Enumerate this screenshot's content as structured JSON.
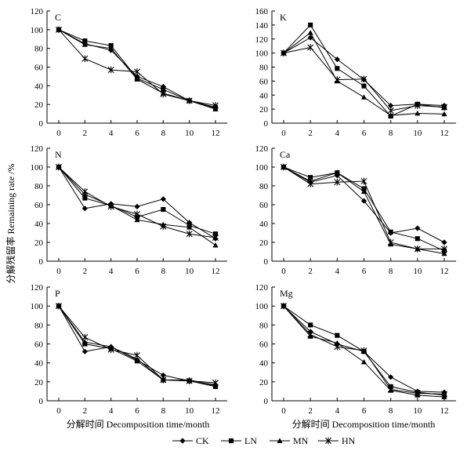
{
  "figure": {
    "ylabel": "分解残留率 Remaining rate /%",
    "xlabel_left": "分解时间 Decomposition time/month",
    "xlabel_right": "分解时间 Decomposition time/month"
  },
  "legend": {
    "items": [
      {
        "name": "CK",
        "marker": "diamond"
      },
      {
        "name": "LN",
        "marker": "square"
      },
      {
        "name": "MN",
        "marker": "triangle"
      },
      {
        "name": "HN",
        "marker": "x"
      }
    ]
  },
  "colors": {
    "ink": "#000000",
    "background": "#ffffff"
  },
  "chart_data": [
    {
      "type": "line",
      "panel_label": "C",
      "x": [
        0,
        2,
        4,
        6,
        8,
        10,
        12
      ],
      "ylim": [
        0,
        120
      ],
      "yticks": [
        0,
        20,
        40,
        60,
        80,
        100,
        120
      ],
      "series": [
        {
          "name": "CK",
          "values": [
            100,
            85,
            78,
            50,
            39,
            24,
            16
          ]
        },
        {
          "name": "LN",
          "values": [
            100,
            88,
            83,
            48,
            36,
            24,
            17
          ]
        },
        {
          "name": "MN",
          "values": [
            100,
            84,
            80,
            47,
            32,
            24,
            15
          ]
        },
        {
          "name": "HN",
          "values": [
            100,
            69,
            57,
            55,
            31,
            24,
            19
          ]
        }
      ]
    },
    {
      "type": "line",
      "panel_label": "K",
      "x": [
        0,
        2,
        4,
        6,
        8,
        10,
        12
      ],
      "ylim": [
        0,
        160
      ],
      "yticks": [
        0,
        20,
        40,
        60,
        80,
        100,
        120,
        140,
        160
      ],
      "series": [
        {
          "name": "CK",
          "values": [
            100,
            122,
            91,
            62,
            25,
            27,
            25
          ]
        },
        {
          "name": "LN",
          "values": [
            100,
            140,
            78,
            53,
            10,
            27,
            22
          ]
        },
        {
          "name": "MN",
          "values": [
            100,
            129,
            60,
            37,
            11,
            14,
            13
          ]
        },
        {
          "name": "HN",
          "values": [
            100,
            108,
            62,
            63,
            18,
            25,
            23
          ]
        }
      ]
    },
    {
      "type": "line",
      "panel_label": "N",
      "x": [
        0,
        2,
        4,
        6,
        8,
        10,
        12
      ],
      "ylim": [
        0,
        120
      ],
      "yticks": [
        0,
        20,
        40,
        60,
        80,
        100,
        120
      ],
      "series": [
        {
          "name": "CK",
          "values": [
            100,
            56,
            61,
            58,
            66,
            41,
            24
          ]
        },
        {
          "name": "LN",
          "values": [
            100,
            67,
            59,
            47,
            55,
            38,
            29
          ]
        },
        {
          "name": "MN",
          "values": [
            100,
            71,
            59,
            44,
            39,
            36,
            17
          ]
        },
        {
          "name": "HN",
          "values": [
            100,
            74,
            58,
            50,
            37,
            29,
            25
          ]
        }
      ]
    },
    {
      "type": "line",
      "panel_label": "Ca",
      "x": [
        0,
        2,
        4,
        6,
        8,
        10,
        12
      ],
      "ylim": [
        0,
        120
      ],
      "yticks": [
        0,
        20,
        40,
        60,
        80,
        100,
        120
      ],
      "series": [
        {
          "name": "CK",
          "values": [
            100,
            84,
            91,
            64,
            30,
            35,
            20
          ]
        },
        {
          "name": "LN",
          "values": [
            100,
            89,
            94,
            77,
            31,
            24,
            11
          ]
        },
        {
          "name": "MN",
          "values": [
            100,
            85,
            94,
            74,
            18,
            13,
            8
          ]
        },
        {
          "name": "HN",
          "values": [
            100,
            82,
            84,
            85,
            20,
            13,
            13
          ]
        }
      ]
    },
    {
      "type": "line",
      "panel_label": "P",
      "x": [
        0,
        2,
        4,
        6,
        8,
        10,
        12
      ],
      "ylim": [
        0,
        120
      ],
      "yticks": [
        0,
        20,
        40,
        60,
        80,
        100,
        120
      ],
      "series": [
        {
          "name": "CK",
          "values": [
            100,
            52,
            57,
            43,
            27,
            21,
            17
          ]
        },
        {
          "name": "LN",
          "values": [
            100,
            60,
            55,
            42,
            22,
            21,
            15
          ]
        },
        {
          "name": "MN",
          "values": [
            100,
            62,
            57,
            44,
            22,
            22,
            16
          ]
        },
        {
          "name": "HN",
          "values": [
            100,
            67,
            54,
            48,
            22,
            21,
            19
          ]
        }
      ]
    },
    {
      "type": "line",
      "panel_label": "Mg",
      "x": [
        0,
        2,
        4,
        6,
        8,
        10,
        12
      ],
      "ylim": [
        0,
        120
      ],
      "yticks": [
        0,
        20,
        40,
        60,
        80,
        100,
        120
      ],
      "series": [
        {
          "name": "CK",
          "values": [
            100,
            73,
            60,
            52,
            25,
            10,
            9
          ]
        },
        {
          "name": "LN",
          "values": [
            100,
            80,
            69,
            52,
            15,
            9,
            6
          ]
        },
        {
          "name": "MN",
          "values": [
            100,
            68,
            61,
            41,
            11,
            6,
            4
          ]
        },
        {
          "name": "HN",
          "values": [
            100,
            70,
            57,
            53,
            12,
            8,
            7
          ]
        }
      ]
    }
  ]
}
